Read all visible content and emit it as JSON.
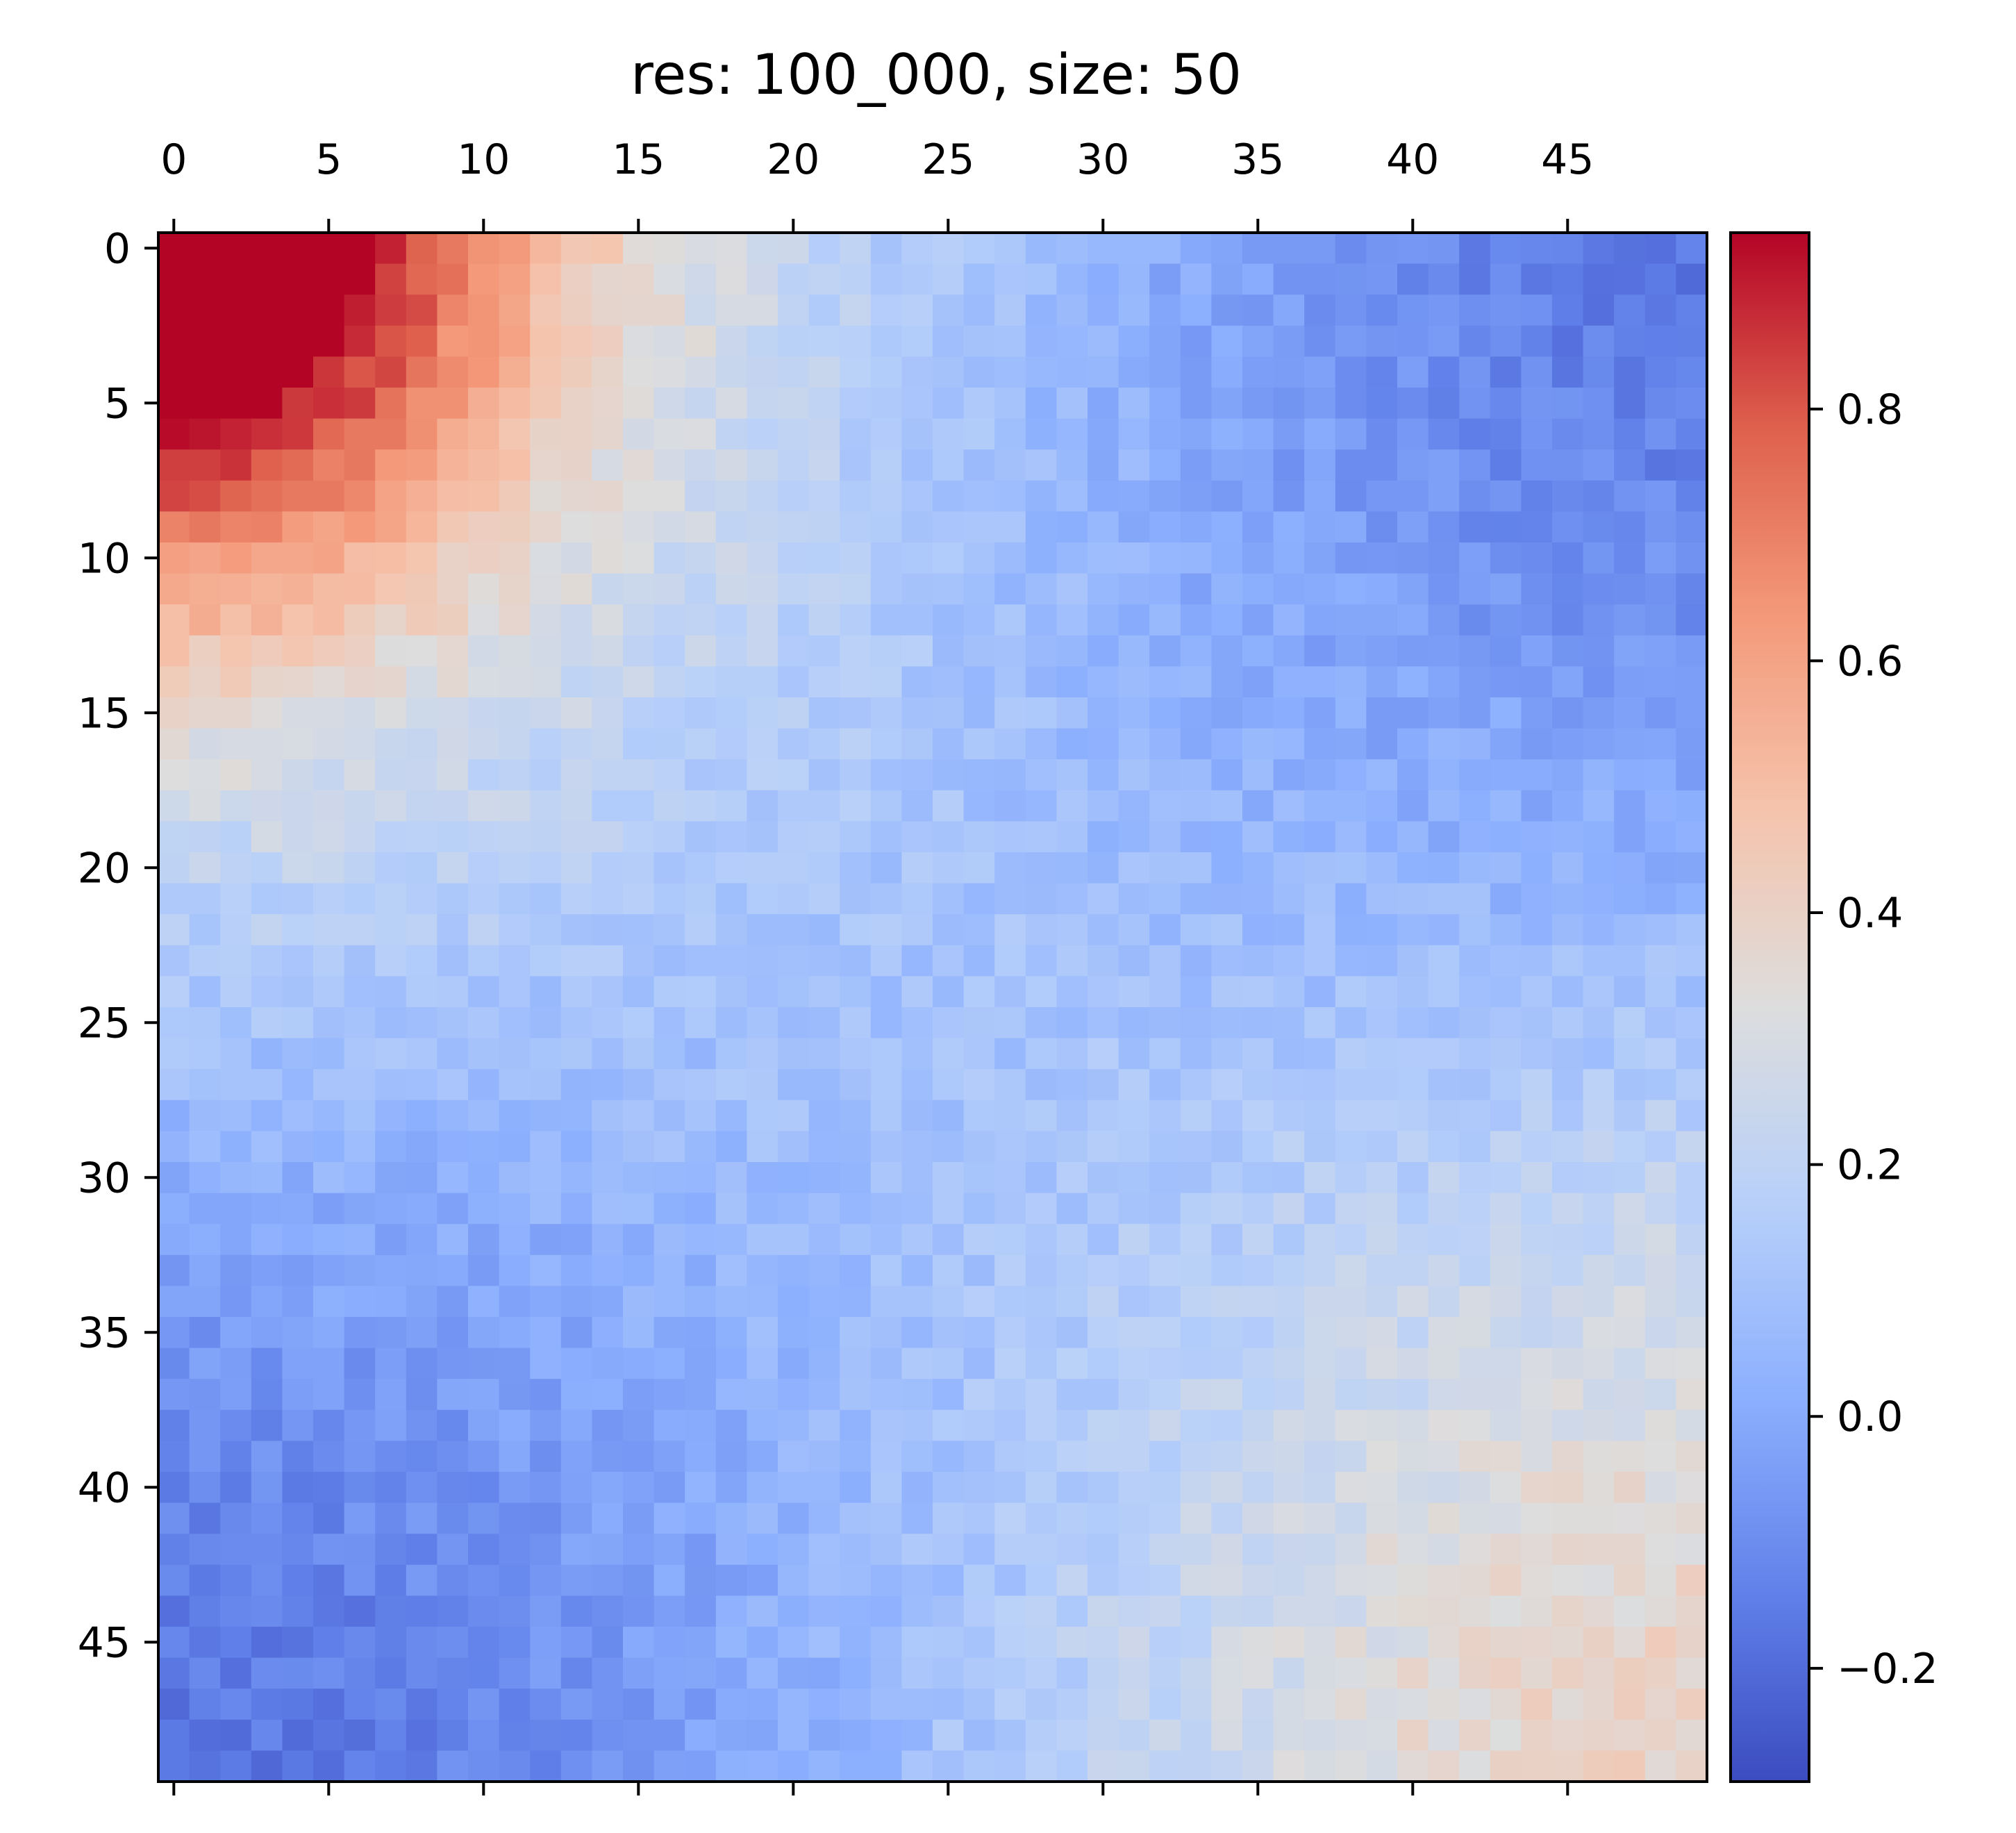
{
  "chart_data": {
    "type": "heatmap",
    "title": "res: 100_000, size: 50",
    "xlabel": "",
    "ylabel": "",
    "rows": 50,
    "cols": 50,
    "x_ticks": [
      "0",
      "5",
      "10",
      "15",
      "20",
      "25",
      "30",
      "35",
      "40",
      "45"
    ],
    "y_ticks": [
      "0",
      "5",
      "10",
      "15",
      "20",
      "25",
      "30",
      "35",
      "40",
      "45"
    ],
    "x_tick_positions_top": true,
    "colormap": "coolwarm",
    "colorbar": {
      "vmin": -0.29,
      "vmax": 0.94,
      "ticks": [
        -0.2,
        0.0,
        0.2,
        0.4,
        0.6,
        0.8
      ],
      "tick_labels": [
        "−0.2",
        "0.0",
        "0.2",
        "0.4",
        "0.6",
        "0.8"
      ],
      "placement": "right"
    },
    "value_model": {
      "description": "",
      "corner_values": {
        "top_left": 0.94,
        "top_right": -0.2,
        "bottom_left": -0.22,
        "bottom_right": 0.42
      }
    }
  }
}
